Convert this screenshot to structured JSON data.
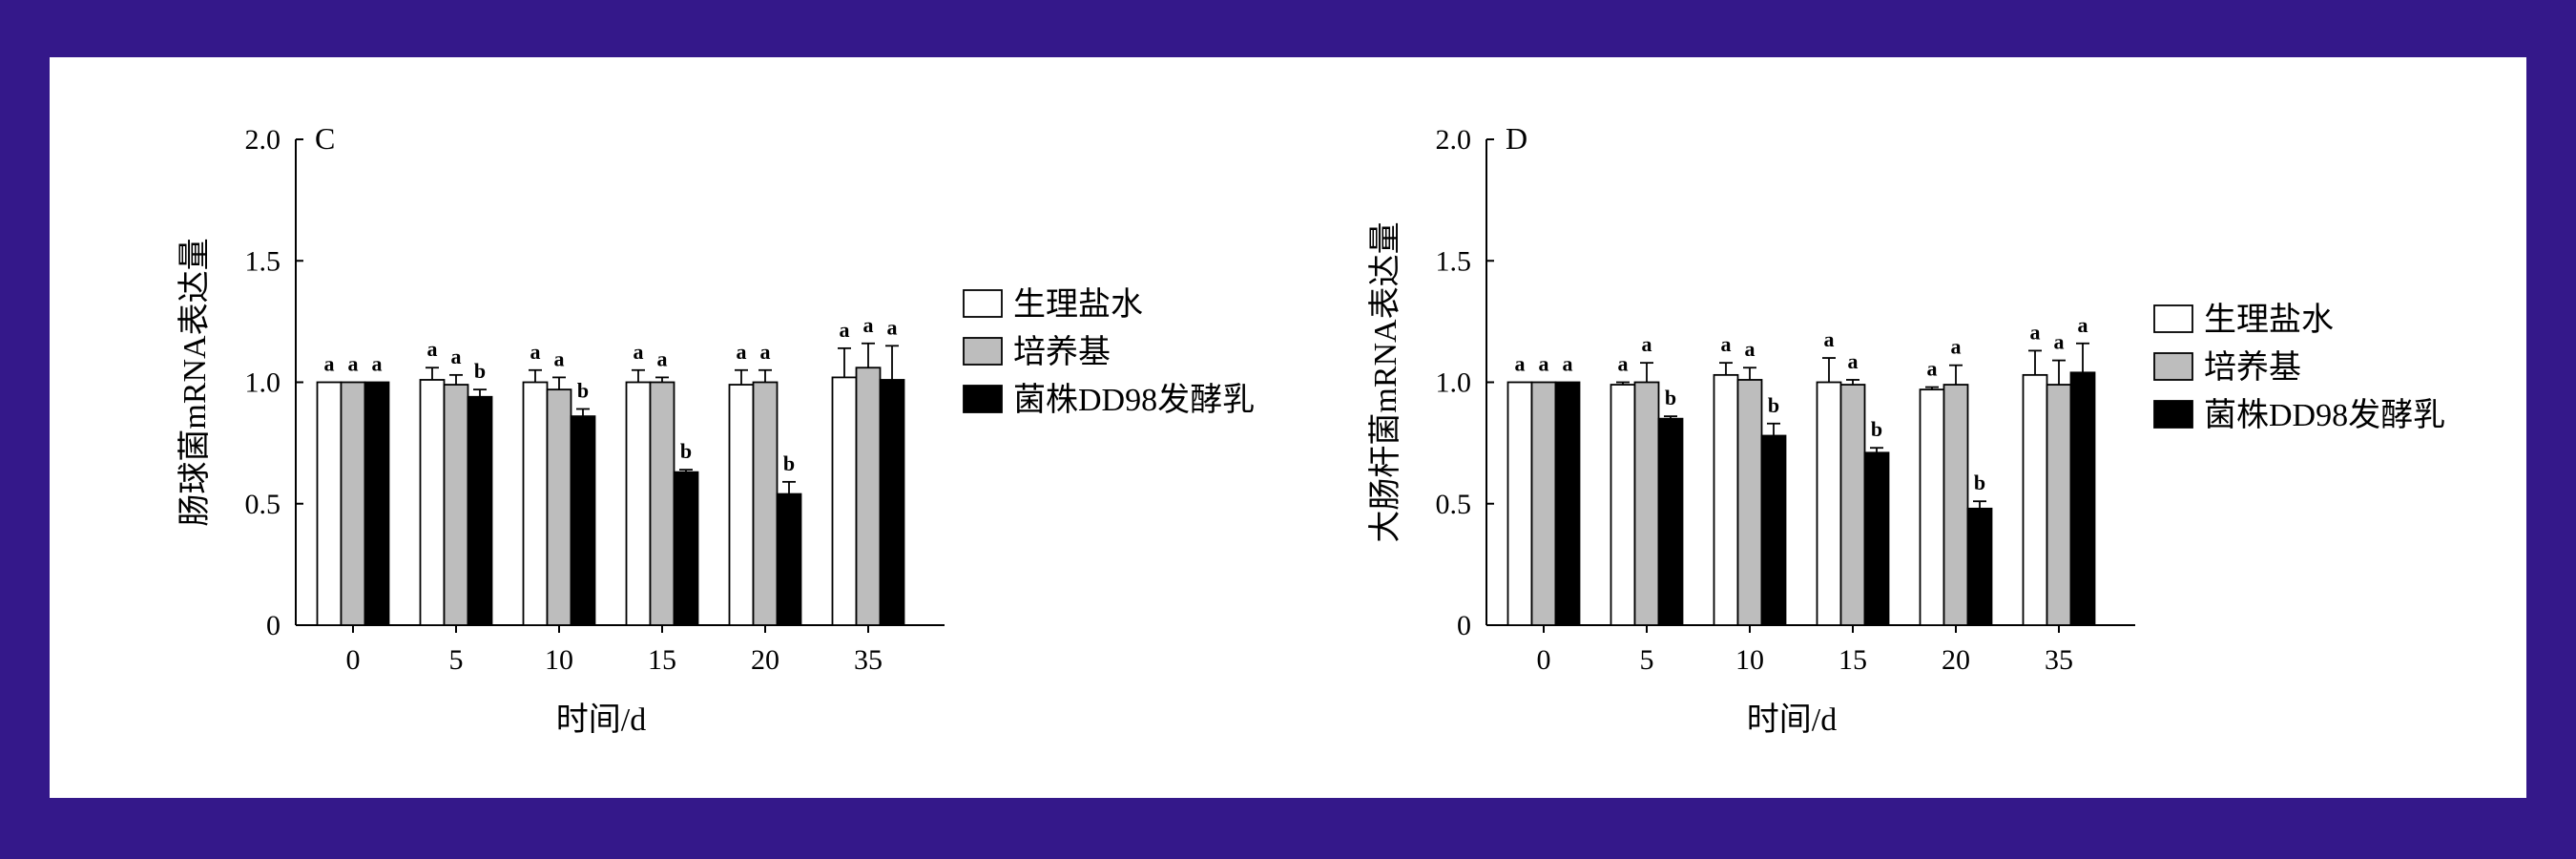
{
  "colors": {
    "frame": "#34188a",
    "background": "#ffffff",
    "series": [
      "#ffffff",
      "#bdbdbd",
      "#000000"
    ]
  },
  "chart_data": [
    {
      "type": "bar",
      "panel_label": "C",
      "ylabel": "肠球菌mRNA表达量",
      "xlabel": "时间/d",
      "categories": [
        "0",
        "5",
        "10",
        "15",
        "20",
        "35"
      ],
      "ylim": [
        0,
        2.0
      ],
      "yticks": [
        "0",
        "0.5",
        "1.0",
        "1.5",
        "2.0"
      ],
      "legend_position": "right",
      "series": [
        {
          "name": "生理盐水",
          "values": [
            1.0,
            1.01,
            1.0,
            1.0,
            0.99,
            1.02
          ],
          "errors": [
            0.0,
            0.05,
            0.05,
            0.05,
            0.06,
            0.12
          ],
          "letters": [
            "a",
            "a",
            "a",
            "a",
            "a",
            "a"
          ]
        },
        {
          "name": "培养基",
          "values": [
            1.0,
            0.99,
            0.97,
            1.0,
            1.0,
            1.06
          ],
          "errors": [
            0.0,
            0.04,
            0.05,
            0.02,
            0.05,
            0.1
          ],
          "letters": [
            "a",
            "a",
            "a",
            "a",
            "a",
            "a"
          ]
        },
        {
          "name": "菌株DD98发酵乳",
          "values": [
            1.0,
            0.94,
            0.86,
            0.63,
            0.54,
            1.01
          ],
          "errors": [
            0.0,
            0.03,
            0.03,
            0.01,
            0.05,
            0.14
          ],
          "letters": [
            "a",
            "b",
            "b",
            "b",
            "b",
            "a"
          ]
        }
      ]
    },
    {
      "type": "bar",
      "panel_label": "D",
      "ylabel": "大肠杆菌mRNA表达量",
      "xlabel": "时间/d",
      "categories": [
        "0",
        "5",
        "10",
        "15",
        "20",
        "35"
      ],
      "ylim": [
        0,
        2.0
      ],
      "yticks": [
        "0",
        "0.5",
        "1.0",
        "1.5",
        "2.0"
      ],
      "legend_position": "right",
      "series": [
        {
          "name": "生理盐水",
          "values": [
            1.0,
            0.99,
            1.03,
            1.0,
            0.97,
            1.03
          ],
          "errors": [
            0.0,
            0.01,
            0.05,
            0.1,
            0.01,
            0.1
          ],
          "letters": [
            "a",
            "a",
            "a",
            "a",
            "a",
            "a"
          ]
        },
        {
          "name": "培养基",
          "values": [
            1.0,
            1.0,
            1.01,
            0.99,
            0.99,
            0.99
          ],
          "errors": [
            0.0,
            0.08,
            0.05,
            0.02,
            0.08,
            0.1
          ],
          "letters": [
            "a",
            "a",
            "a",
            "a",
            "a",
            "a"
          ]
        },
        {
          "name": "菌株DD98发酵乳",
          "values": [
            1.0,
            0.85,
            0.78,
            0.71,
            0.48,
            1.04
          ],
          "errors": [
            0.0,
            0.01,
            0.05,
            0.02,
            0.03,
            0.12
          ],
          "letters": [
            "a",
            "b",
            "b",
            "b",
            "b",
            "a"
          ]
        }
      ]
    }
  ]
}
